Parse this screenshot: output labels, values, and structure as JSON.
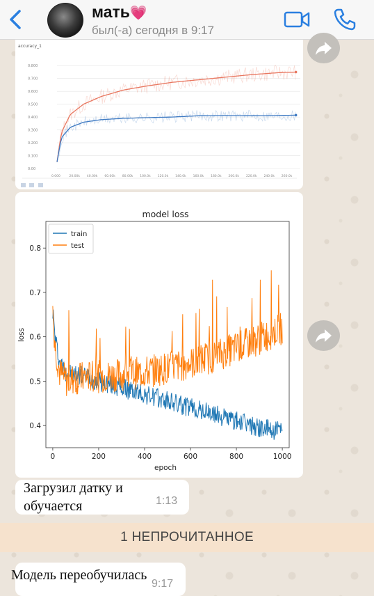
{
  "header": {
    "contact_name": "мать",
    "heart": "💗",
    "status": "был(-а) сегодня в 9:17"
  },
  "messages": [
    {
      "type": "image",
      "description_id": "accuracy-chart"
    },
    {
      "type": "image",
      "description_id": "loss-chart"
    },
    {
      "type": "text",
      "text_line1": "Загрузил датку и",
      "text_line2": "обучается",
      "time": "1:13"
    },
    {
      "type": "text",
      "text_line1": "Модель переобучилась",
      "time": "9:17"
    }
  ],
  "unread_banner": "1 НЕПРОЧИТАННОЕ",
  "chart_data": [
    {
      "type": "line",
      "title": "accuracy_1",
      "y_ticks": [
        "0.00",
        "0.100",
        "0.200",
        "0.300",
        "0.400",
        "0.500",
        "0.600",
        "0.700",
        "0.800"
      ],
      "x_ticks": [
        "0.000",
        "20.00k",
        "40.00k",
        "60.00k",
        "80.00k",
        "100.0k",
        "120.0k",
        "140.0k",
        "160.0k",
        "180.0k",
        "200.0k",
        "220.0k",
        "240.0k",
        "260.0k"
      ],
      "ylim": [
        0,
        0.85
      ],
      "xlim": [
        0,
        275
      ],
      "colors": {
        "orange": "#e8765f",
        "blue": "#3d79c2"
      },
      "series": [
        {
          "color": "orange",
          "x": [
            0,
            5,
            15,
            30,
            50,
            75,
            100,
            130,
            160,
            190,
            220,
            250,
            270
          ],
          "y": [
            0.05,
            0.28,
            0.42,
            0.5,
            0.56,
            0.61,
            0.64,
            0.67,
            0.69,
            0.71,
            0.73,
            0.745,
            0.75
          ]
        },
        {
          "color": "blue",
          "x": [
            0,
            5,
            15,
            30,
            50,
            75,
            100,
            130,
            160,
            190,
            220,
            250,
            270
          ],
          "y": [
            0.05,
            0.24,
            0.32,
            0.36,
            0.38,
            0.39,
            0.395,
            0.4,
            0.41,
            0.412,
            0.41,
            0.412,
            0.415
          ]
        }
      ]
    },
    {
      "type": "line",
      "title": "model loss",
      "xlabel": "epoch",
      "ylabel": "loss",
      "xlim": [
        -30,
        1030
      ],
      "ylim": [
        0.35,
        0.86
      ],
      "x_ticks": [
        0,
        200,
        400,
        600,
        800,
        1000
      ],
      "y_ticks": [
        0.4,
        0.5,
        0.6,
        0.7,
        0.8
      ],
      "legend": [
        "train",
        "test"
      ],
      "legend_position": "top-left",
      "colors": {
        "train": "#1f77b4",
        "test": "#ff7f0e"
      },
      "series": [
        {
          "name": "train",
          "x": [
            0,
            10,
            30,
            60,
            100,
            150,
            200,
            300,
            400,
            500,
            600,
            700,
            800,
            900,
            1000
          ],
          "y": [
            0.66,
            0.6,
            0.54,
            0.52,
            0.515,
            0.51,
            0.5,
            0.485,
            0.47,
            0.455,
            0.44,
            0.425,
            0.41,
            0.395,
            0.385
          ]
        },
        {
          "name": "test",
          "x": [
            0,
            10,
            30,
            60,
            100,
            150,
            200,
            300,
            400,
            500,
            600,
            700,
            800,
            900,
            1000
          ],
          "y": [
            0.66,
            0.58,
            0.52,
            0.5,
            0.505,
            0.51,
            0.51,
            0.515,
            0.52,
            0.53,
            0.54,
            0.555,
            0.575,
            0.595,
            0.62
          ]
        }
      ]
    }
  ]
}
